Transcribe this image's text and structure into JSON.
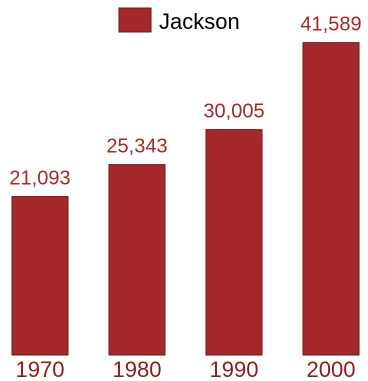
{
  "chart_data": {
    "type": "bar",
    "categories": [
      "1970",
      "1980",
      "1990",
      "2000"
    ],
    "series": [
      {
        "name": "Jackson",
        "values": [
          21093,
          25343,
          30005,
          41589
        ]
      }
    ],
    "value_labels": [
      "21,093",
      "25,343",
      "30,005",
      "41,589"
    ],
    "ylim": [
      0,
      46000
    ],
    "grid": false,
    "legend": "top-center",
    "colors": {
      "bar": "#a5282b",
      "bar_edge": "#6e1414",
      "label": "#a5282b"
    }
  }
}
